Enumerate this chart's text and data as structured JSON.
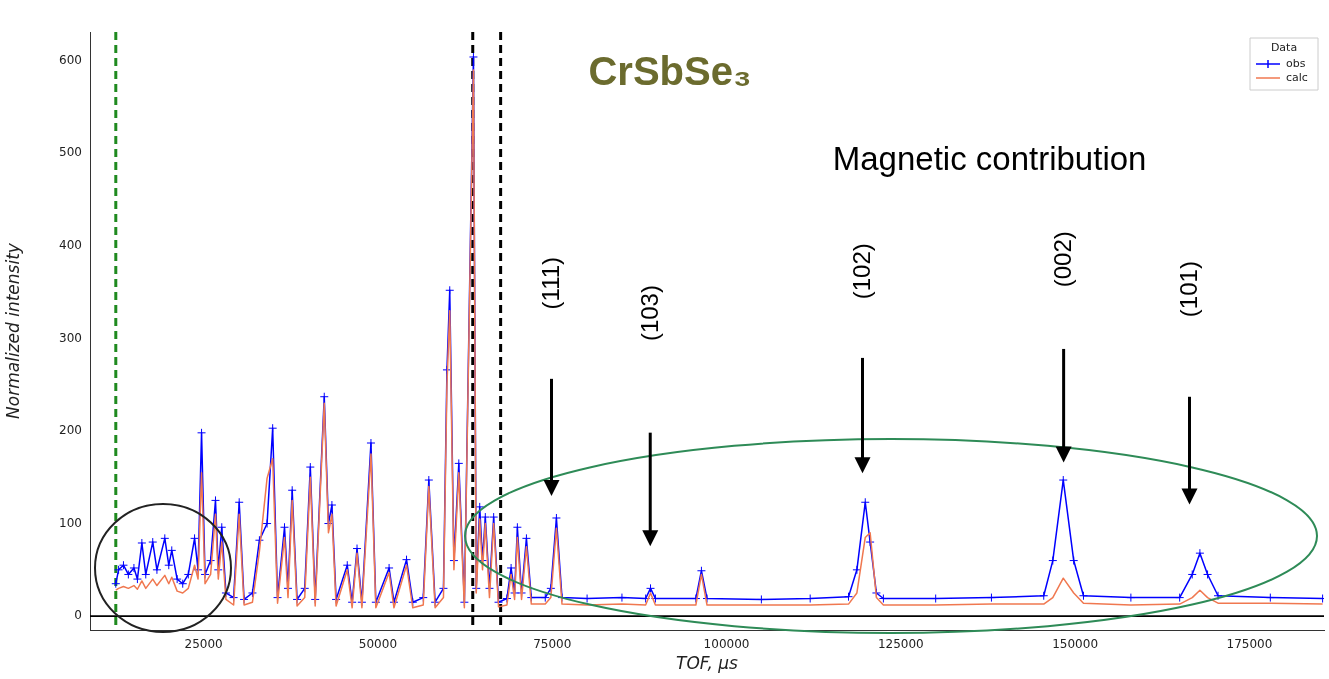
{
  "chart_data": {
    "type": "line",
    "title": "CrSbSe₃",
    "xlabel": "TOF, µs",
    "ylabel": "Normalized intensity",
    "legend_title": "Data",
    "legend": "top right",
    "grid": false,
    "xlim": [
      8700,
      185700
    ],
    "xticks": [
      25000,
      50000,
      75000,
      100000,
      125000,
      150000,
      175000
    ],
    "ylim": [
      -15,
      631
    ],
    "yticks": [
      0,
      100,
      200,
      300,
      400,
      500,
      600
    ],
    "x": [
      12400,
      12800,
      13500,
      14200,
      15000,
      15500,
      16140,
      16700,
      17700,
      18300,
      19430,
      20000,
      20430,
      21200,
      22000,
      22800,
      23700,
      24200,
      24700,
      25200,
      26000,
      26700,
      27100,
      27600,
      28200,
      29300,
      30100,
      30800,
      32000,
      33000,
      34100,
      34900,
      35600,
      36600,
      37100,
      37700,
      38400,
      39500,
      40300,
      41000,
      42300,
      42900,
      43400,
      44000,
      45600,
      46300,
      47000,
      47700,
      49000,
      49700,
      51600,
      52300,
      54100,
      55000,
      56500,
      57300,
      58200,
      59400,
      59900,
      60300,
      60900,
      61600,
      62400,
      63700,
      64100,
      64600,
      65000,
      65400,
      66000,
      66600,
      67300,
      68500,
      69100,
      69600,
      70000,
      70600,
      71300,
      72000,
      74000,
      74800,
      75600,
      76400,
      80000,
      85000,
      88400,
      89100,
      89800,
      95600,
      96400,
      97200,
      105000,
      112000,
      117500,
      118700,
      119900,
      120600,
      121500,
      122500,
      130000,
      138000,
      145500,
      146800,
      148300,
      149800,
      151200,
      158000,
      165000,
      166800,
      167900,
      169000,
      170500,
      178000,
      185500
    ],
    "series": [
      {
        "name": "obs",
        "color": "#0000ff",
        "marker": "cross",
        "values": [
          35,
          50,
          55,
          45,
          52,
          40,
          79,
          45,
          80,
          50,
          84,
          55,
          71,
          40,
          35,
          45,
          84,
          50,
          198,
          45,
          60,
          125,
          50,
          96,
          25,
          20,
          123,
          18,
          25,
          82,
          100,
          203,
          20,
          96,
          30,
          136,
          18,
          30,
          161,
          18,
          237,
          100,
          120,
          18,
          55,
          15,
          73,
          15,
          187,
          15,
          52,
          15,
          61,
          15,
          20,
          147,
          15,
          30,
          266,
          352,
          60,
          165,
          15,
          604,
          30,
          118,
          60,
          107,
          30,
          107,
          15,
          19,
          52,
          25,
          96,
          25,
          84,
          20,
          20,
          30,
          106,
          20,
          19,
          20,
          19,
          30,
          19,
          19,
          49,
          19,
          18,
          19,
          21,
          50,
          123,
          80,
          25,
          19,
          19,
          20,
          22,
          60,
          147,
          60,
          22,
          20,
          20,
          45,
          68,
          45,
          22,
          20,
          19
        ]
      },
      {
        "name": "calc",
        "color": "#f07850",
        "marker": "none",
        "values": [
          28,
          30,
          32,
          30,
          33,
          29,
          38,
          30,
          40,
          33,
          44,
          35,
          42,
          27,
          25,
          30,
          55,
          40,
          155,
          35,
          45,
          110,
          40,
          80,
          18,
          12,
          110,
          12,
          15,
          70,
          149,
          170,
          14,
          85,
          20,
          125,
          11,
          20,
          150,
          11,
          230,
          90,
          110,
          11,
          50,
          9,
          68,
          9,
          175,
          9,
          47,
          9,
          55,
          9,
          12,
          140,
          9,
          20,
          250,
          330,
          50,
          155,
          9,
          590,
          25,
          105,
          50,
          100,
          20,
          100,
          10,
          12,
          45,
          18,
          85,
          18,
          75,
          13,
          13,
          20,
          95,
          13,
          12,
          13,
          12,
          25,
          12,
          12,
          45,
          12,
          12,
          12,
          13,
          25,
          85,
          90,
          20,
          12,
          12,
          13,
          13,
          20,
          41,
          25,
          14,
          12,
          13,
          20,
          28,
          20,
          14,
          14,
          13
        ]
      }
    ],
    "ref_lines": [
      {
        "axis": "x",
        "value": 12400,
        "color": "#1f8a1f",
        "line_style": "dashed"
      },
      {
        "axis": "x",
        "value": 63600,
        "color": "#000000",
        "line_style": "dashed"
      },
      {
        "axis": "x",
        "value": 67600,
        "color": "#000000",
        "line_style": "dashed"
      },
      {
        "axis": "y",
        "value": 0,
        "color": "#000000",
        "line_style": "solid"
      }
    ],
    "annotations": [
      "Magnetic contribution",
      "(111)",
      "(103)",
      "(102)",
      "(002)",
      "(101)"
    ]
  }
}
